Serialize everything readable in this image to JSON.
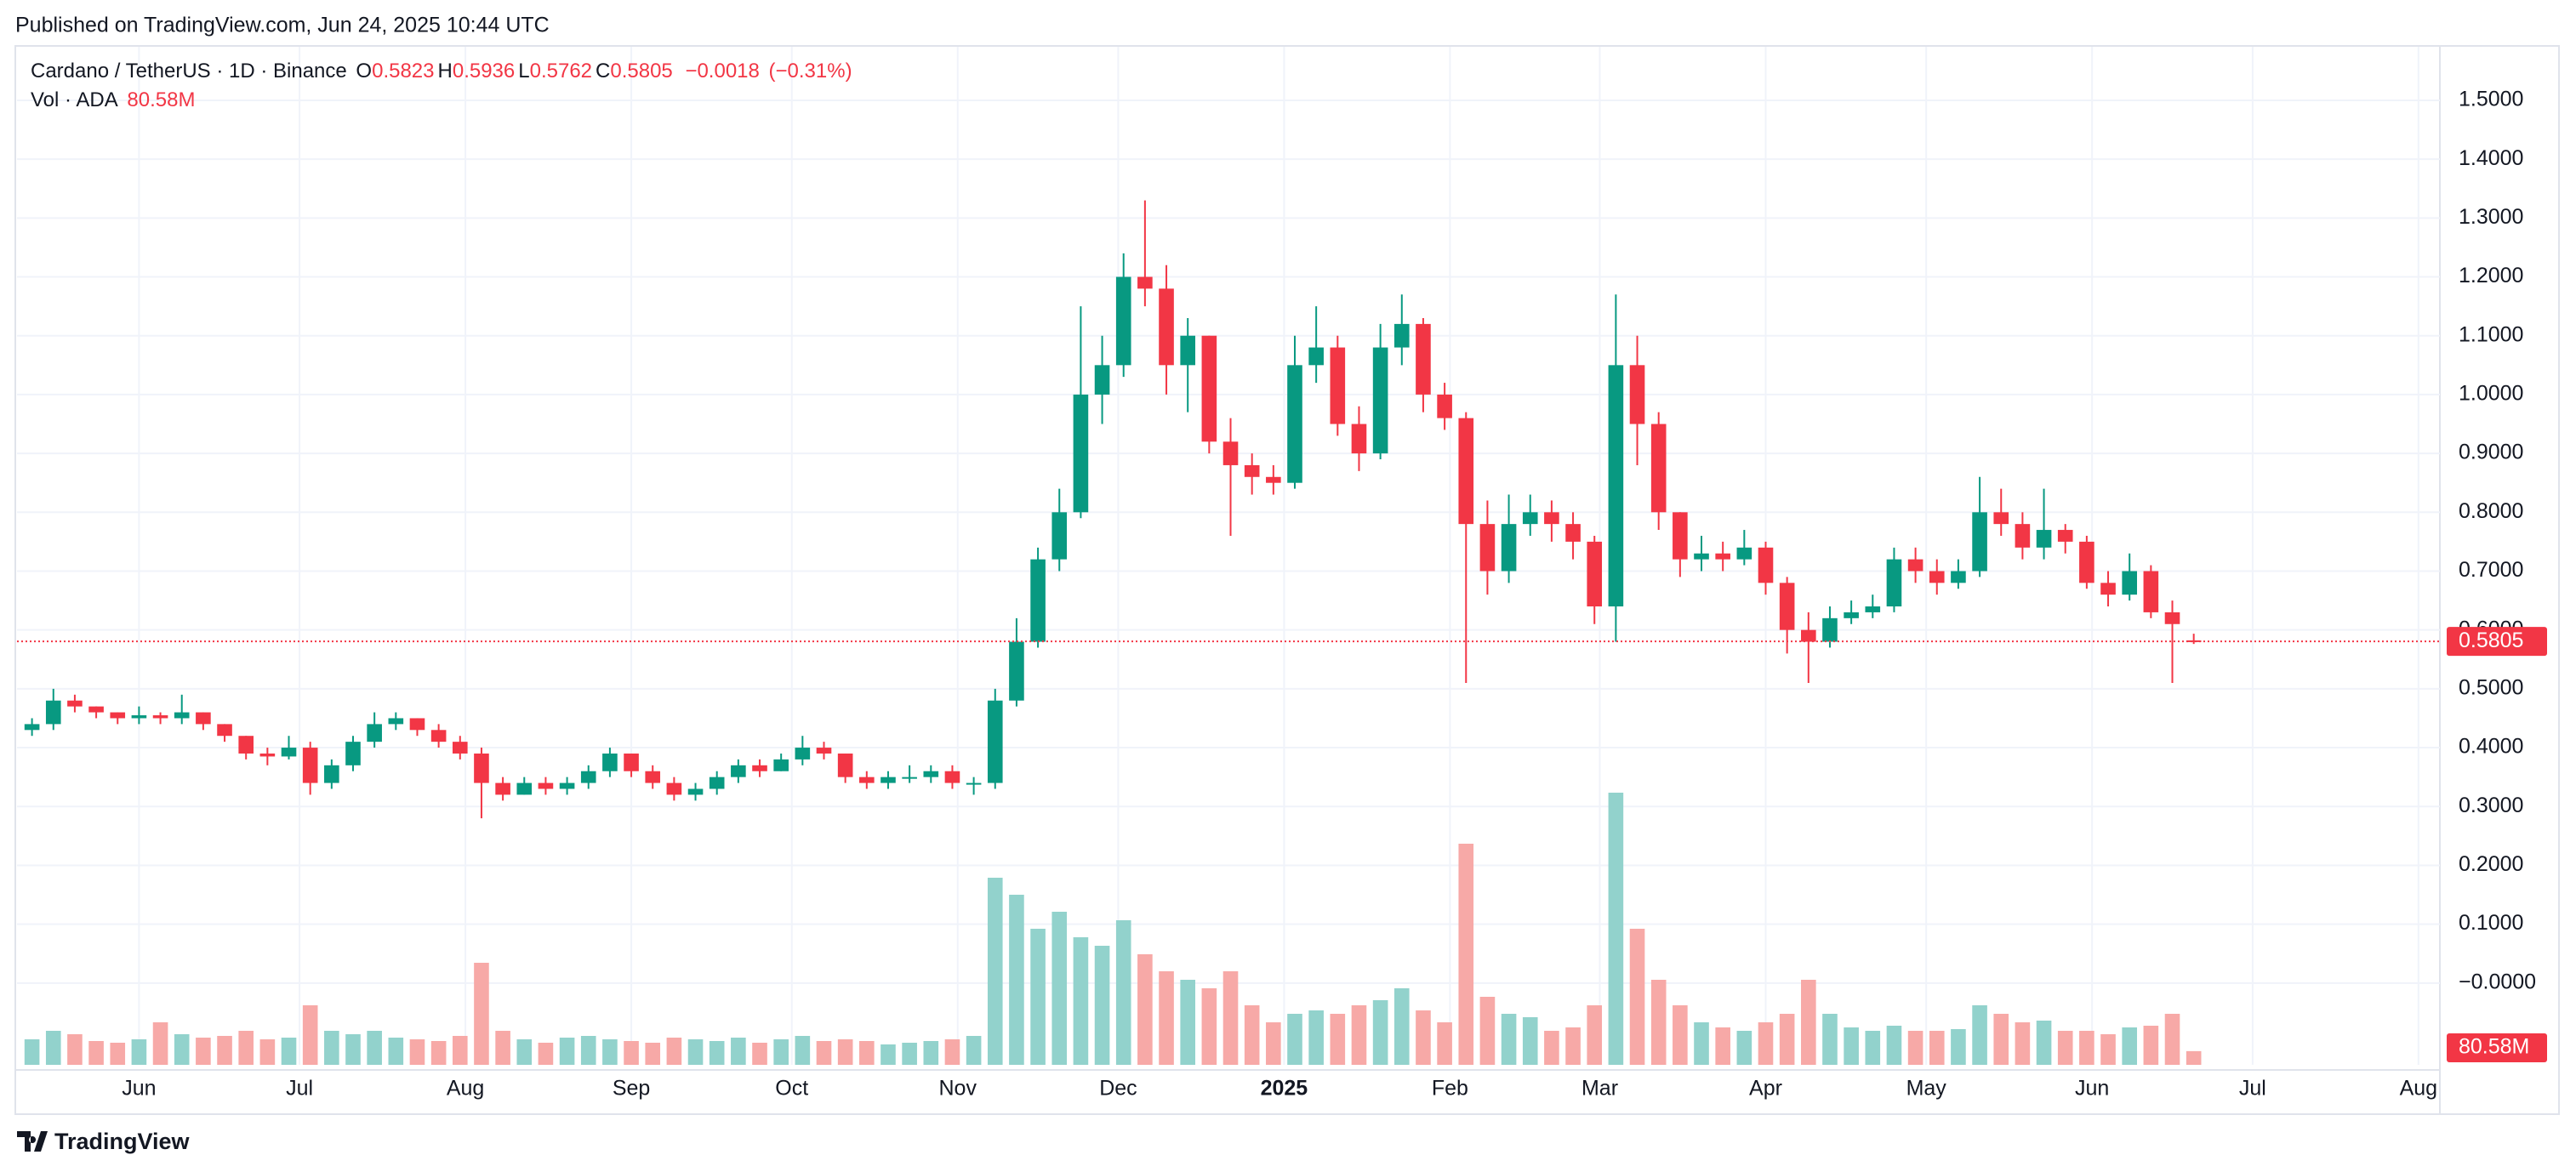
{
  "chart_data": {
    "type": "candlestick",
    "published": "Published on TradingView.com, Jun 24, 2025 10:44 UTC",
    "symbol": "Cardano / TetherUS · 1D · Binance",
    "ohlc": [
      {
        "label": "O",
        "value": 0.5823
      },
      {
        "label": "H",
        "value": 0.5936
      },
      {
        "label": "L",
        "value": 0.5762
      },
      {
        "label": "C",
        "value": 0.5805
      }
    ],
    "change": {
      "value": -0.0018,
      "label": "−0.0018"
    },
    "change_pct": {
      "value": -0.31,
      "label": "(−0.31%)"
    },
    "volume_title": "Vol · ADA",
    "last_volume": {
      "value": 80.58,
      "label": "80.58M"
    },
    "brand": "TradingView",
    "up_color": "#089981",
    "down_color": "#f23645",
    "up_volume_color": "#92d2cc",
    "down_volume_color": "#f7a9a7",
    "grid": true,
    "xlim": [
      -0.7,
      112.5
    ],
    "xticks": [
      {
        "value": 5,
        "label": "Jun"
      },
      {
        "value": 12.5,
        "label": "Jul"
      },
      {
        "value": 20.25,
        "label": "Aug"
      },
      {
        "value": 28,
        "label": "Sep"
      },
      {
        "value": 35.5,
        "label": "Oct"
      },
      {
        "value": 43.25,
        "label": "Nov"
      },
      {
        "value": 50.75,
        "label": "Dec"
      },
      {
        "value": 58.5,
        "label": "2025"
      },
      {
        "value": 66.25,
        "label": "Feb"
      },
      {
        "value": 73.25,
        "label": "Mar"
      },
      {
        "value": 81,
        "label": "Apr"
      },
      {
        "value": 88.5,
        "label": "May"
      },
      {
        "value": 96.25,
        "label": "Jun"
      },
      {
        "value": 103.75,
        "label": "Jul"
      },
      {
        "value": 111.5,
        "label": "Aug"
      }
    ],
    "ylim": [
      -0.139,
      1.591
    ],
    "yticks": [
      {
        "value": 0,
        "label": "−0.0000"
      },
      {
        "value": 0.1,
        "label": "0.1000"
      },
      {
        "value": 0.2,
        "label": "0.2000"
      },
      {
        "value": 0.3,
        "label": "0.3000"
      },
      {
        "value": 0.4,
        "label": "0.4000"
      },
      {
        "value": 0.5,
        "label": "0.5000"
      },
      {
        "value": 0.6,
        "label": "0.6000"
      },
      {
        "value": 0.7,
        "label": "0.7000"
      },
      {
        "value": 0.8,
        "label": "0.8000"
      },
      {
        "value": 0.9,
        "label": "0.9000"
      },
      {
        "value": 1,
        "label": "1.0000"
      },
      {
        "value": 1.1,
        "label": "1.1000"
      },
      {
        "value": 1.2,
        "label": "1.2000"
      },
      {
        "value": 1.3,
        "label": "1.3000"
      },
      {
        "value": 1.4,
        "label": "1.4000"
      },
      {
        "value": 1.5,
        "label": "1.5000"
      }
    ],
    "y2lim": [
      0,
      1700
    ],
    "open": [
      0.43,
      0.44,
      0.48,
      0.47,
      0.46,
      0.45,
      0.455,
      0.45,
      0.46,
      0.44,
      0.42,
      0.39,
      0.385,
      0.4,
      0.34,
      0.37,
      0.41,
      0.44,
      0.45,
      0.43,
      0.41,
      0.39,
      0.34,
      0.32,
      0.34,
      0.33,
      0.34,
      0.36,
      0.39,
      0.36,
      0.34,
      0.32,
      0.33,
      0.35,
      0.37,
      0.36,
      0.38,
      0.4,
      0.39,
      0.35,
      0.34,
      0.35,
      0.35,
      0.36,
      0.34,
      0.34,
      0.48,
      0.58,
      0.72,
      0.8,
      1.0,
      1.05,
      1.2,
      1.18,
      1.05,
      1.1,
      0.92,
      0.88,
      0.86,
      0.85,
      1.05,
      1.08,
      0.95,
      0.9,
      1.08,
      1.12,
      1.0,
      0.96,
      0.78,
      0.7,
      0.78,
      0.8,
      0.78,
      0.75,
      0.64,
      1.05,
      0.95,
      0.8,
      0.72,
      0.73,
      0.72,
      0.74,
      0.68,
      0.6,
      0.58,
      0.62,
      0.63,
      0.64,
      0.72,
      0.7,
      0.68,
      0.7,
      0.8,
      0.78,
      0.74,
      0.77,
      0.75,
      0.68,
      0.66,
      0.7,
      0.63,
      0.5823
    ],
    "high": [
      0.45,
      0.5,
      0.49,
      0.47,
      0.46,
      0.47,
      0.46,
      0.49,
      0.46,
      0.44,
      0.42,
      0.4,
      0.42,
      0.41,
      0.38,
      0.42,
      0.46,
      0.46,
      0.45,
      0.44,
      0.42,
      0.4,
      0.35,
      0.35,
      0.35,
      0.35,
      0.37,
      0.4,
      0.39,
      0.37,
      0.35,
      0.34,
      0.36,
      0.38,
      0.38,
      0.39,
      0.42,
      0.41,
      0.39,
      0.36,
      0.36,
      0.37,
      0.37,
      0.37,
      0.35,
      0.5,
      0.62,
      0.74,
      0.84,
      1.15,
      1.1,
      1.24,
      1.33,
      1.22,
      1.13,
      1.1,
      0.96,
      0.9,
      0.88,
      1.1,
      1.15,
      1.1,
      0.98,
      1.12,
      1.17,
      1.13,
      1.02,
      0.97,
      0.82,
      0.83,
      0.83,
      0.82,
      0.8,
      0.76,
      1.17,
      1.1,
      0.97,
      0.8,
      0.76,
      0.75,
      0.77,
      0.75,
      0.69,
      0.63,
      0.64,
      0.65,
      0.66,
      0.74,
      0.74,
      0.72,
      0.72,
      0.86,
      0.84,
      0.8,
      0.84,
      0.78,
      0.76,
      0.7,
      0.73,
      0.71,
      0.65,
      0.5936
    ],
    "low": [
      0.42,
      0.43,
      0.46,
      0.45,
      0.44,
      0.44,
      0.44,
      0.44,
      0.43,
      0.41,
      0.38,
      0.37,
      0.38,
      0.32,
      0.33,
      0.36,
      0.4,
      0.43,
      0.42,
      0.4,
      0.38,
      0.28,
      0.31,
      0.32,
      0.32,
      0.32,
      0.33,
      0.35,
      0.35,
      0.33,
      0.31,
      0.31,
      0.32,
      0.34,
      0.35,
      0.36,
      0.37,
      0.38,
      0.34,
      0.33,
      0.33,
      0.34,
      0.34,
      0.33,
      0.32,
      0.33,
      0.47,
      0.57,
      0.7,
      0.79,
      0.95,
      1.03,
      1.15,
      1.0,
      0.97,
      0.9,
      0.76,
      0.83,
      0.83,
      0.84,
      1.02,
      0.93,
      0.87,
      0.89,
      1.05,
      0.97,
      0.94,
      0.51,
      0.66,
      0.68,
      0.76,
      0.75,
      0.72,
      0.61,
      0.58,
      0.88,
      0.77,
      0.69,
      0.7,
      0.7,
      0.71,
      0.66,
      0.56,
      0.51,
      0.57,
      0.61,
      0.62,
      0.63,
      0.68,
      0.66,
      0.67,
      0.69,
      0.76,
      0.72,
      0.72,
      0.73,
      0.67,
      0.64,
      0.65,
      0.62,
      0.51,
      0.5762
    ],
    "close": [
      0.44,
      0.48,
      0.47,
      0.46,
      0.45,
      0.455,
      0.45,
      0.46,
      0.44,
      0.42,
      0.39,
      0.385,
      0.4,
      0.34,
      0.37,
      0.41,
      0.44,
      0.45,
      0.43,
      0.41,
      0.39,
      0.34,
      0.32,
      0.34,
      0.33,
      0.34,
      0.36,
      0.39,
      0.36,
      0.34,
      0.32,
      0.33,
      0.35,
      0.37,
      0.36,
      0.38,
      0.4,
      0.39,
      0.35,
      0.34,
      0.35,
      0.35,
      0.36,
      0.34,
      0.34,
      0.48,
      0.58,
      0.72,
      0.8,
      1.0,
      1.05,
      1.2,
      1.18,
      1.05,
      1.1,
      0.92,
      0.88,
      0.86,
      0.85,
      1.05,
      1.08,
      0.95,
      0.9,
      1.08,
      1.12,
      1.0,
      0.96,
      0.78,
      0.7,
      0.78,
      0.8,
      0.78,
      0.75,
      0.64,
      1.05,
      0.95,
      0.8,
      0.72,
      0.73,
      0.72,
      0.74,
      0.68,
      0.6,
      0.58,
      0.62,
      0.63,
      0.64,
      0.72,
      0.7,
      0.68,
      0.7,
      0.8,
      0.78,
      0.74,
      0.77,
      0.75,
      0.68,
      0.66,
      0.7,
      0.63,
      0.61,
      0.5805
    ],
    "volume": [
      150,
      200,
      180,
      140,
      130,
      150,
      250,
      180,
      160,
      170,
      200,
      150,
      160,
      350,
      200,
      180,
      200,
      160,
      150,
      140,
      170,
      600,
      200,
      150,
      130,
      160,
      170,
      150,
      140,
      130,
      160,
      150,
      140,
      160,
      130,
      150,
      170,
      140,
      150,
      140,
      120,
      130,
      140,
      150,
      170,
      1100,
      1000,
      800,
      900,
      750,
      700,
      850,
      650,
      550,
      500,
      450,
      550,
      350,
      250,
      300,
      320,
      300,
      350,
      380,
      450,
      320,
      250,
      1300,
      400,
      300,
      280,
      200,
      220,
      350,
      1600,
      800,
      500,
      350,
      250,
      220,
      200,
      250,
      300,
      500,
      300,
      220,
      200,
      230,
      200,
      200,
      210,
      350,
      300,
      250,
      260,
      200,
      200,
      180,
      220,
      230,
      300,
      80.58
    ]
  }
}
